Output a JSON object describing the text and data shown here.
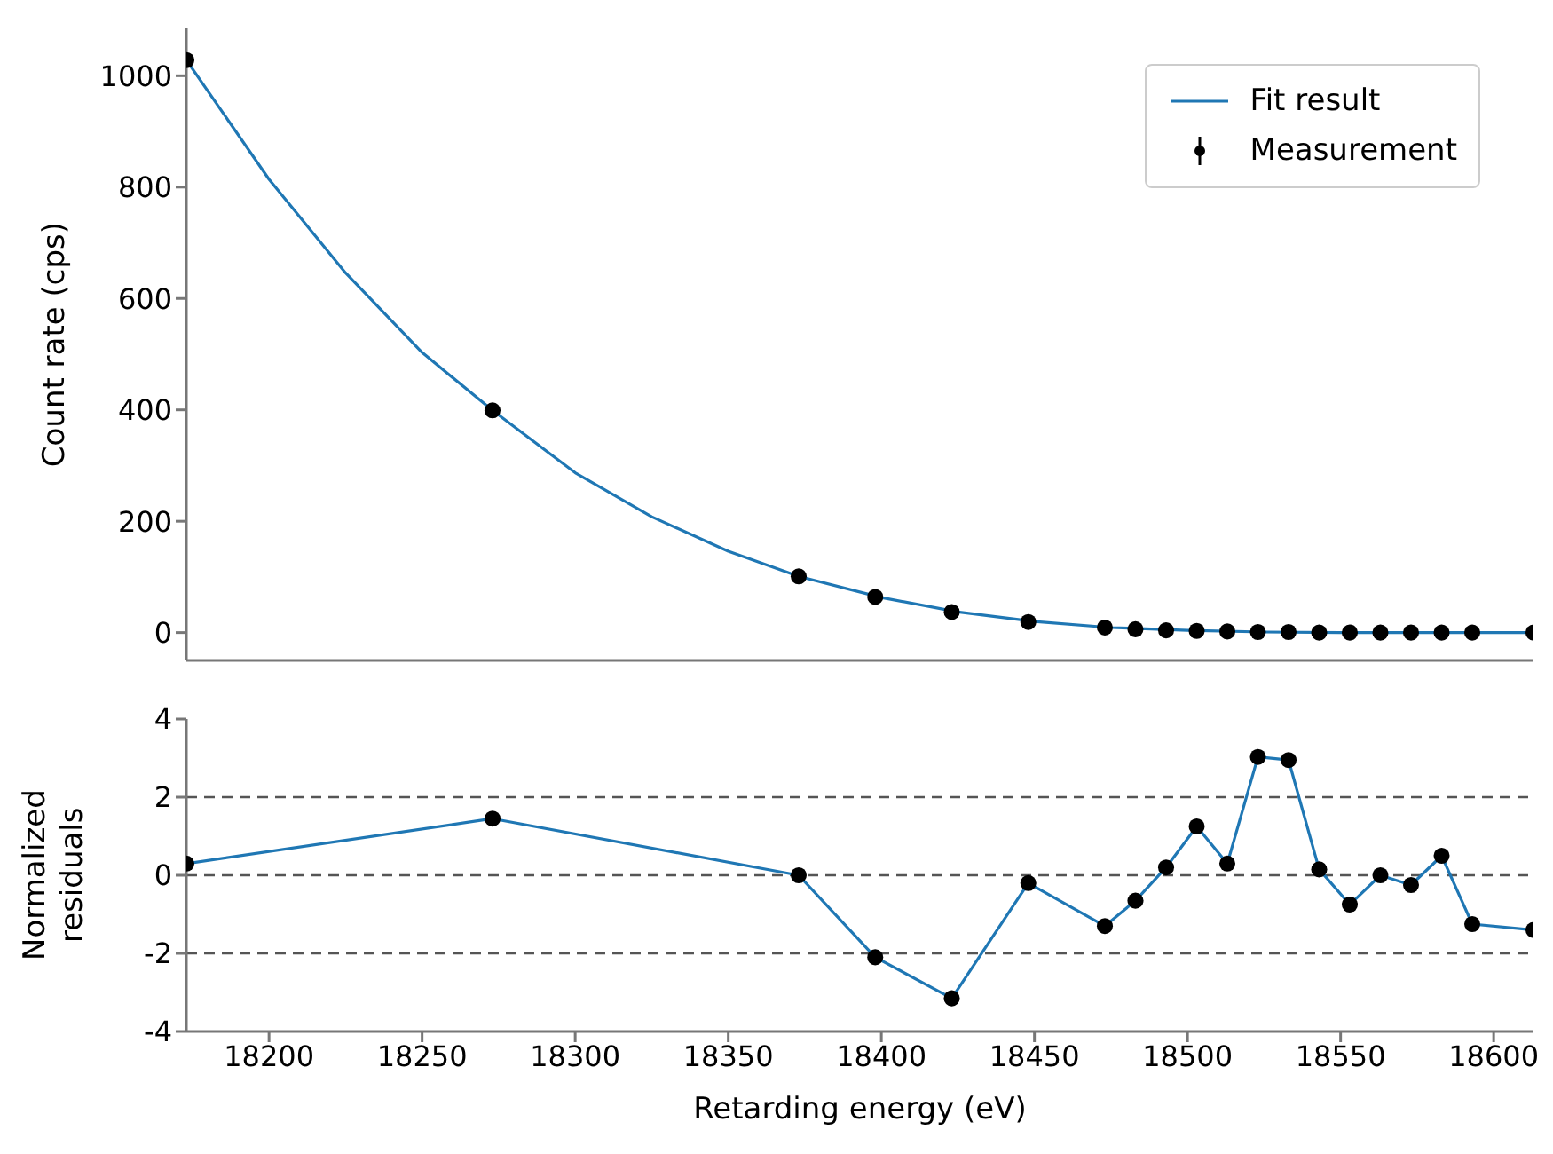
{
  "chart_data": [
    {
      "type": "line",
      "ylabel": "Count rate (cps)",
      "xlim": [
        18173,
        18613
      ],
      "xticks": [
        18200,
        18250,
        18300,
        18350,
        18400,
        18450,
        18500,
        18550,
        18600
      ],
      "ylim": [
        -50,
        1085
      ],
      "yticks": [
        0,
        200,
        400,
        600,
        800,
        1000
      ],
      "tick_labels": "y",
      "legend": "top right",
      "grid": false,
      "series": [
        {
          "name": "Fit result",
          "type": "line",
          "color": "#1f77b4",
          "marker": "none",
          "x": [
            18173,
            18200,
            18225,
            18250,
            18273,
            18300,
            18325,
            18350,
            18373,
            18400,
            18425,
            18450,
            18475,
            18500,
            18525,
            18550,
            18574,
            18613
          ],
          "values": [
            1028,
            814,
            646,
            503,
            399,
            287,
            208,
            146,
            101,
            63,
            37,
            20,
            9,
            4,
            1,
            0,
            0,
            0
          ]
        },
        {
          "name": "Measurement",
          "type": "scatter",
          "color": "#000000",
          "marker": "circle",
          "x": [
            18173,
            18273,
            18373,
            18398,
            18423,
            18448,
            18473,
            18483,
            18493,
            18503,
            18513,
            18523,
            18533,
            18543,
            18553,
            18563,
            18573,
            18583,
            18593,
            18613
          ],
          "values": [
            1028,
            399,
            101,
            64,
            37,
            19,
            9,
            6,
            4,
            3,
            2,
            1,
            1,
            0,
            0,
            0,
            0,
            0,
            0,
            0
          ]
        }
      ]
    },
    {
      "type": "line",
      "xlabel": "Retarding energy (eV)",
      "ylabel": "Normalized residuals",
      "xlim": [
        18173,
        18613
      ],
      "xticks": [
        18200,
        18250,
        18300,
        18350,
        18400,
        18450,
        18500,
        18550,
        18600
      ],
      "ylim": [
        -4,
        4
      ],
      "yticks": [
        -4,
        -2,
        0,
        2,
        4
      ],
      "grid": false,
      "ref_lines": [
        {
          "axis": "y",
          "value": 2,
          "color": "#555555",
          "line_style": "dashed"
        },
        {
          "axis": "y",
          "value": 0,
          "color": "#555555",
          "line_style": "dashed"
        },
        {
          "axis": "y",
          "value": -2,
          "color": "#555555",
          "line_style": "dashed"
        }
      ],
      "series": [
        {
          "type": "line",
          "color": "#1f77b4",
          "marker": "none",
          "x": [
            18173,
            18273,
            18373,
            18398,
            18423,
            18448,
            18473,
            18483,
            18493,
            18503,
            18513,
            18523,
            18533,
            18543,
            18553,
            18563,
            18573,
            18583,
            18593,
            18613
          ],
          "values": [
            0.3,
            1.45,
            0,
            -2.1,
            -3.15,
            -0.2,
            -1.3,
            -0.65,
            0.2,
            1.25,
            0.3,
            3.03,
            2.95,
            0.15,
            -0.75,
            0,
            -0.25,
            0.5,
            -1.25,
            -1.4
          ]
        },
        {
          "type": "scatter",
          "color": "#000000",
          "marker": "circle",
          "x": [
            18173,
            18273,
            18373,
            18398,
            18423,
            18448,
            18473,
            18483,
            18493,
            18503,
            18513,
            18523,
            18533,
            18543,
            18553,
            18563,
            18573,
            18583,
            18593,
            18613
          ],
          "values": [
            0.3,
            1.45,
            0,
            -2.1,
            -3.15,
            -0.2,
            -1.3,
            -0.65,
            0.2,
            1.25,
            0.3,
            3.03,
            2.95,
            0.15,
            -0.75,
            0,
            -0.25,
            0.5,
            -1.25,
            -1.4
          ]
        }
      ]
    }
  ]
}
